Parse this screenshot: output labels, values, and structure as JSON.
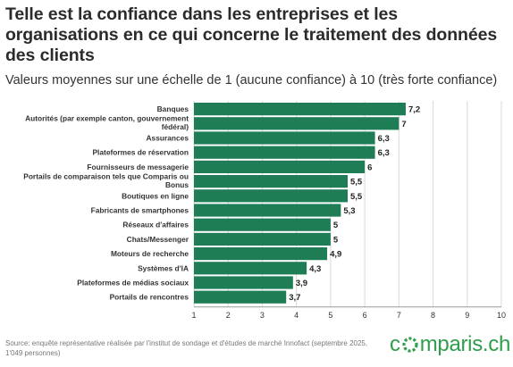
{
  "header": {
    "title": "Telle est la confiance dans les entreprises et les organisations en ce qui concerne le traitement des données des clients",
    "subtitle": "Valeurs moyennes sur une échelle de 1 (aucune confiance) à 10 (très forte confiance)"
  },
  "footer": {
    "source": "Source: enquête représentative réalisée par l'institut de sondage et d'études de marché Innofact (septembre 2025, 1'049 personnes)",
    "brand_left": "c",
    "brand_right": "mparis.ch",
    "brand_icon": "comparis-ring-logo-icon"
  },
  "colors": {
    "bar": "#1f7d55",
    "grid": "#d9d9d9",
    "brand": "#2e9e4a"
  },
  "chart_data": {
    "type": "bar",
    "orientation": "horizontal",
    "categories": [
      "Banques",
      "Autorités (par exemple canton, gouvernement fédéral)",
      "Assurances",
      "Plateformes de réservation",
      "Fournisseurs de messagerie",
      "Portails de comparaison tels que Comparis ou Bonus",
      "Boutiques en ligne",
      "Fabricants de smartphones",
      "Réseaux d'affaires",
      "Chats/Messenger",
      "Moteurs de recherche",
      "Systèmes d'IA",
      "Plateformes de médias sociaux",
      "Portails de rencontres"
    ],
    "category_lines": [
      [
        "Banques"
      ],
      [
        "Autorités (par exemple canton, gouvernement",
        "fédéral)"
      ],
      [
        "Assurances"
      ],
      [
        "Plateformes de réservation"
      ],
      [
        "Fournisseurs de messagerie"
      ],
      [
        "Portails de comparaison tels que Comparis ou",
        "Bonus"
      ],
      [
        "Boutiques en ligne"
      ],
      [
        "Fabricants de smartphones"
      ],
      [
        "Réseaux d'affaires"
      ],
      [
        "Chats/Messenger"
      ],
      [
        "Moteurs de recherche"
      ],
      [
        "Systèmes d'IA"
      ],
      [
        "Plateformes de médias sociaux"
      ],
      [
        "Portails de rencontres"
      ]
    ],
    "values": [
      7.2,
      7,
      6.3,
      6.3,
      6,
      5.5,
      5.5,
      5.3,
      5,
      5,
      4.9,
      4.3,
      3.9,
      3.7
    ],
    "value_labels": [
      "7,2",
      "7",
      "6,3",
      "6,3",
      "6",
      "5,5",
      "5,5",
      "5,3",
      "5",
      "5",
      "4,9",
      "4,3",
      "3,9",
      "3,7"
    ],
    "xlim": [
      1,
      10
    ],
    "xticks": [
      1,
      2,
      3,
      4,
      5,
      6,
      7,
      8,
      9,
      10
    ],
    "xtick_labels": [
      "1",
      "2",
      "3",
      "4",
      "5",
      "6",
      "7",
      "8",
      "9",
      "10"
    ],
    "grid": true
  }
}
